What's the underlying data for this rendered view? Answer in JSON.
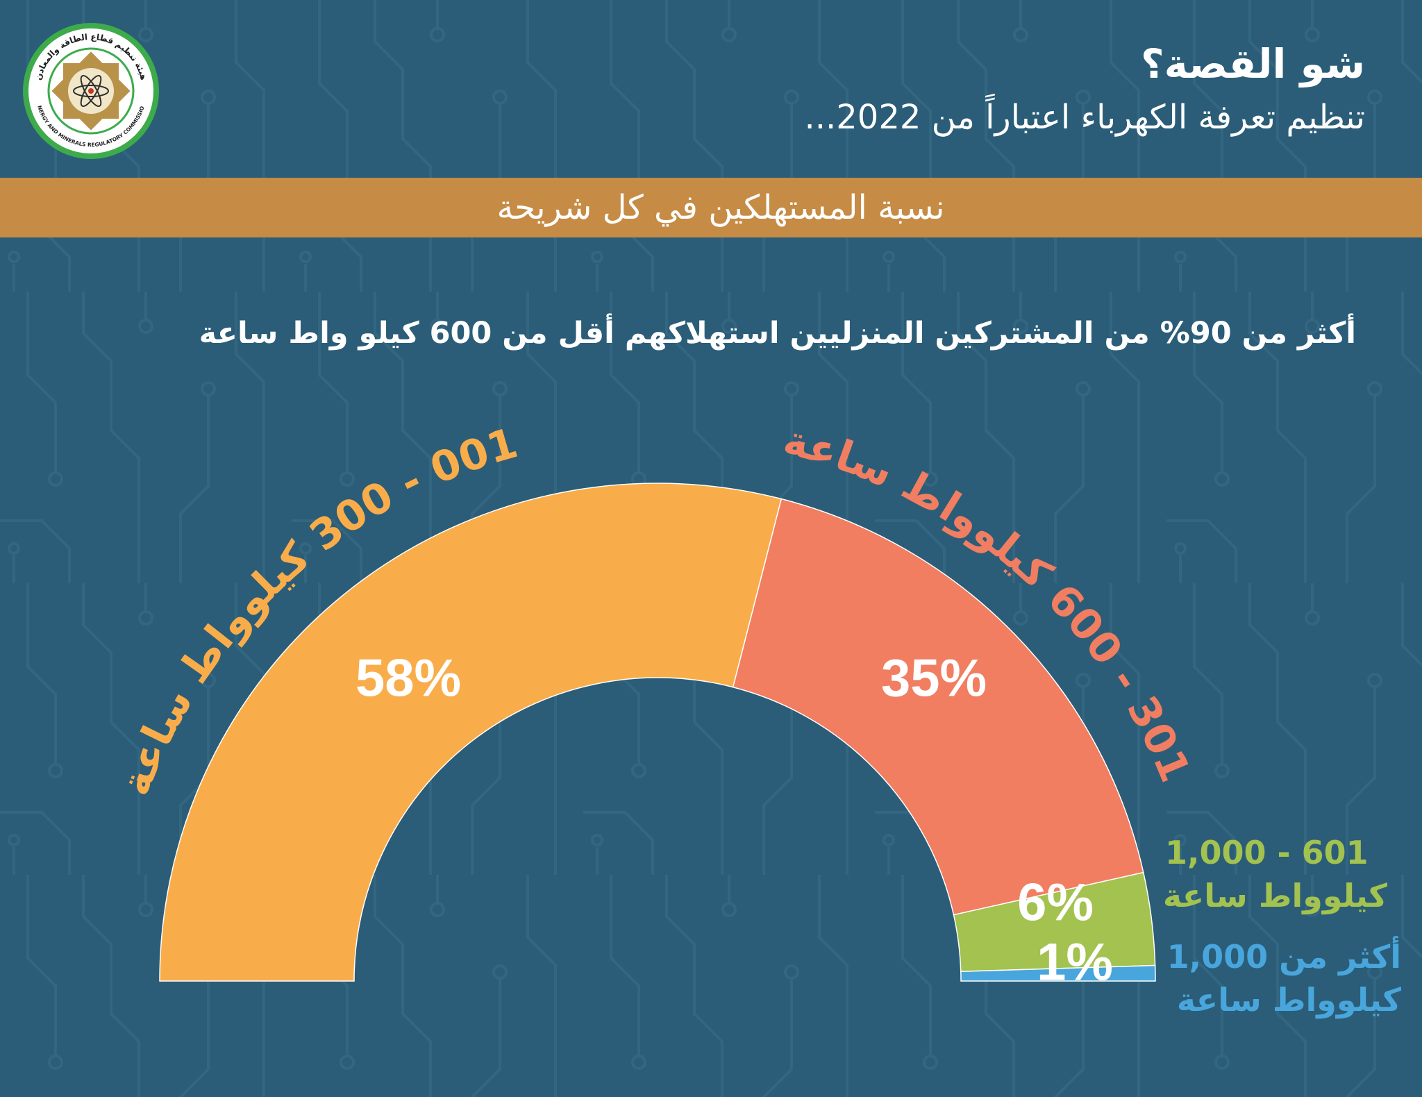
{
  "header": {
    "title": "شو القصة؟",
    "subtitle": "تنظيم تعرفة الكهرباء اعتباراً من 2022..."
  },
  "logo": {
    "name_ar": "هيئة تنظيم قطاع الطاقة والمعادن",
    "name_en": "ENERGY AND MINERALS REGULATORY COMMISSION",
    "icon": "atom-emblem-icon"
  },
  "colors": {
    "background": "#2b5d78",
    "circuit_lines": "#3a6c87",
    "banner": "#c68b44",
    "text": "#ffffff",
    "logo_ring": "#3eab4b"
  },
  "chart_data": {
    "type": "pie",
    "variant": "semi-donut",
    "title": "نسبة المستهلكين في كل شريحة",
    "annotation": "أكثر من 90% من المشتركين المنزليين استهلاكهم أقل من 600 كيلو واط ساعة",
    "categories": [
      [
        "001 - 300 كيلوواط ساعة"
      ],
      [
        "301 - 600 كيلوواط ساعة"
      ],
      [
        "601 - 1,000",
        "كيلوواط ساعة"
      ],
      [
        "أكثر من 1,000",
        "كيلوواط ساعة"
      ]
    ],
    "values": [
      58,
      35,
      6,
      1
    ],
    "value_labels": [
      "58%",
      "35%",
      "6%",
      "1%"
    ],
    "colors": [
      "#f9ad4a",
      "#f17e61",
      "#a3c24f",
      "#48a6dc"
    ]
  }
}
